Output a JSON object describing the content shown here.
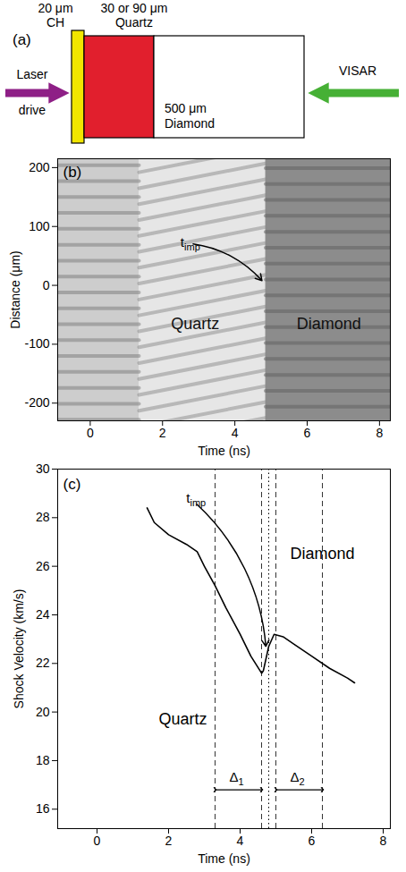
{
  "panel_a": {
    "label": "(a)",
    "layers": [
      {
        "lines": [
          "20 μm",
          "CH"
        ],
        "color": "#f2e600"
      },
      {
        "lines": [
          "30 or 90 μm",
          "Quartz"
        ],
        "color": "#e11f2d"
      },
      {
        "lines": [
          "500 μm",
          "Diamond"
        ],
        "color": "#ffffff"
      }
    ],
    "laser": {
      "lines": [
        "Laser",
        "drive"
      ],
      "color": "#8e1f86"
    },
    "probe": {
      "lines": [
        "VISAR"
      ],
      "color": "#46b035"
    }
  },
  "panel_b": {
    "label": "(b)",
    "x_label": "Time (ns)",
    "y_label": "Distance (μm)",
    "xlim": [
      -0.9,
      8.3
    ],
    "ylim": [
      -230,
      215
    ],
    "xticks": [
      0,
      2,
      4,
      6,
      8
    ],
    "yticks": [
      -200,
      -100,
      0,
      100,
      200
    ],
    "regions": [
      {
        "start": -0.9,
        "end": 1.35,
        "color": "#cdcdcd"
      },
      {
        "start": 1.35,
        "end": 4.85,
        "color": "#e6e6e6"
      },
      {
        "start": 4.85,
        "end": 8.3,
        "color": "#8c8c8c"
      }
    ],
    "texts": [
      {
        "text": "Quartz",
        "x": 2.9,
        "y": -65
      },
      {
        "text": "Diamond",
        "x": 6.6,
        "y": -65
      }
    ],
    "t_imp": {
      "main": "t",
      "sub": "imp",
      "x": 2.6,
      "y": 72,
      "target_x": 4.75,
      "target_y": 8
    }
  },
  "chart_data": {
    "type": "line",
    "label": "(c)",
    "x_label": "Time (ns)",
    "y_label": "Shock Velocity (km/s)",
    "xlim": [
      -1.1,
      8.2
    ],
    "ylim": [
      15.2,
      30
    ],
    "xticks": [
      0,
      2,
      4,
      6,
      8
    ],
    "yticks": [
      16,
      18,
      20,
      22,
      24,
      26,
      28,
      30
    ],
    "series": [
      {
        "name": "Quartz",
        "color": "#000000",
        "x": [
          1.4,
          1.6,
          2.0,
          2.5,
          2.8,
          3.0,
          3.3,
          3.6,
          4.0,
          4.3,
          4.6
        ],
        "values": [
          28.4,
          27.8,
          27.3,
          26.9,
          26.6,
          26.0,
          25.2,
          24.3,
          23.2,
          22.3,
          21.6
        ]
      },
      {
        "name": "Diamond",
        "color": "#000000",
        "x": [
          4.6,
          4.65,
          4.8,
          4.95,
          5.2,
          5.5,
          6.0,
          6.5,
          7.0,
          7.2
        ],
        "values": [
          21.6,
          21.7,
          22.7,
          23.2,
          23.1,
          22.8,
          22.3,
          21.8,
          21.4,
          21.2
        ]
      }
    ],
    "texts": [
      {
        "text": "Quartz",
        "x": 2.4,
        "y": 19.7
      },
      {
        "text": "Diamond",
        "x": 6.3,
        "y": 26.5
      }
    ],
    "dashed_lines": [
      3.3,
      4.6,
      5.0,
      6.3
    ],
    "t_imp": {
      "main": "t",
      "sub": "imp",
      "x": 2.6,
      "y": 28.8,
      "target_x": 4.72,
      "target_y": 22.7,
      "line": 4.8
    },
    "intervals": [
      {
        "main": "Δ",
        "sub": "1",
        "from": 3.3,
        "to": 4.6,
        "y": 16.8
      },
      {
        "main": "Δ",
        "sub": "2",
        "from": 5.0,
        "to": 6.3,
        "y": 16.8
      }
    ]
  }
}
